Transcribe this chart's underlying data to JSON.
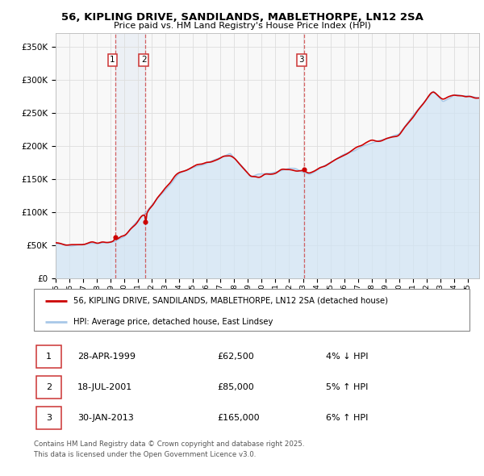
{
  "title": "56, KIPLING DRIVE, SANDILANDS, MABLETHORPE, LN12 2SA",
  "subtitle": "Price paid vs. HM Land Registry's House Price Index (HPI)",
  "ytick_vals": [
    0,
    50000,
    100000,
    150000,
    200000,
    250000,
    300000,
    350000
  ],
  "ylim": [
    0,
    370000
  ],
  "xlim_start": 1995.0,
  "xlim_end": 2025.83,
  "hpi_color": "#a8c8e8",
  "hpi_fill_color": "#d0e4f4",
  "price_color": "#cc0000",
  "background_color": "#f8f8f8",
  "grid_color": "#dddddd",
  "legend_label_price": "56, KIPLING DRIVE, SANDILANDS, MABLETHORPE, LN12 2SA (detached house)",
  "legend_label_hpi": "HPI: Average price, detached house, East Lindsey",
  "sales": [
    {
      "num": 1,
      "date": "28-APR-1999",
      "price": 62500,
      "year": 1999.32,
      "hpi_pct": "4%",
      "hpi_dir": "↓"
    },
    {
      "num": 2,
      "date": "18-JUL-2001",
      "price": 85000,
      "year": 2001.54,
      "hpi_pct": "5%",
      "hpi_dir": "↑"
    },
    {
      "num": 3,
      "date": "30-JAN-2013",
      "price": 165000,
      "year": 2013.08,
      "hpi_pct": "6%",
      "hpi_dir": "↑"
    }
  ],
  "footer_line1": "Contains HM Land Registry data © Crown copyright and database right 2025.",
  "footer_line2": "This data is licensed under the Open Government Licence v3.0."
}
